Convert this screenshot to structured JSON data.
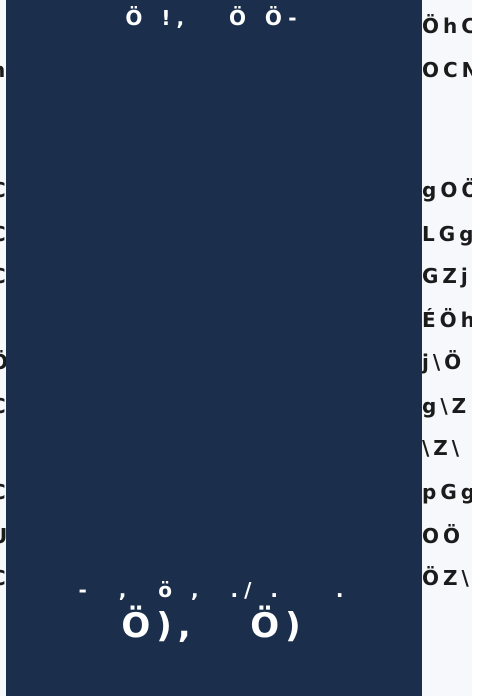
{
  "background": {
    "right_rows": [
      "ÖhC",
      "OCN",
      "gOÖ",
      "LGg",
      "GZj",
      "ÉÖh",
      "j\\Ö",
      "g\\Z",
      "\\Z\\",
      "pGg",
      "OÖ",
      "ÖZ\\"
    ],
    "left_rows": [
      "h",
      "C",
      "C",
      "C",
      "Ö",
      "C",
      "C",
      "U",
      "C"
    ]
  },
  "panel": {
    "title": "Ö !,   Ö Ö-",
    "footer_line": "-  ,  ö ,  ./ .    .",
    "footer_big": "Ö),   Ö)"
  }
}
